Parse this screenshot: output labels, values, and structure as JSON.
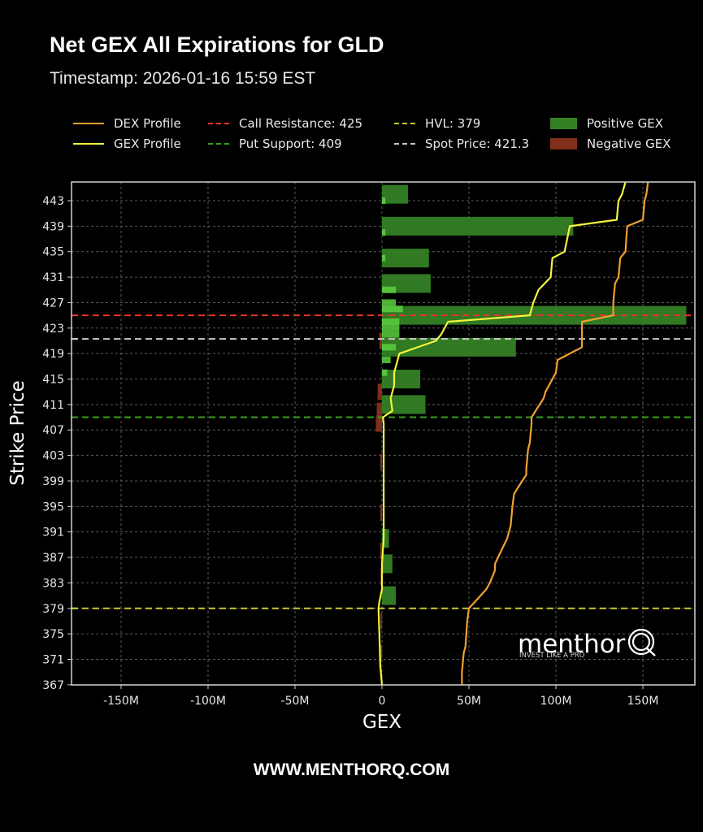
{
  "header": {
    "title": "Net GEX All Expirations for GLD",
    "timestamp": "Timestamp: 2026-01-16 15:59 EST"
  },
  "legend": [
    {
      "label": "DEX Profile",
      "type": "line",
      "color": "#f0a030"
    },
    {
      "label": "GEX Profile",
      "type": "line",
      "color": "#f4f43c"
    },
    {
      "label": "Call Resistance: 425",
      "type": "dashed",
      "color": "#e8342a"
    },
    {
      "label": "Put Support: 409",
      "type": "dashed",
      "color": "#3aa020"
    },
    {
      "label": "HVL: 379",
      "type": "dashed",
      "color": "#c8c830"
    },
    {
      "label": "Spot Price: 421.3",
      "type": "dashed",
      "color": "#c8c8c8"
    },
    {
      "label": "Positive GEX",
      "type": "box",
      "color": "#348024"
    },
    {
      "label": "Negative GEX",
      "type": "box",
      "color": "#80301a"
    }
  ],
  "watermark": {
    "brand": "menthor",
    "brand_q": "Q",
    "tagline": "INVEST LIKE A PRO"
  },
  "footer": {
    "url": "WWW.MENTHORQ.COM"
  },
  "chart_data": {
    "type": "bar",
    "orientation": "horizontal",
    "title": "Net GEX All Expirations for GLD",
    "subtitle": "Timestamp: 2026-01-16 15:59 EST",
    "xlabel": "GEX",
    "ylabel": "Strike Price",
    "xlim": [
      -180,
      180
    ],
    "ylim": [
      367,
      446
    ],
    "x_unit": "M",
    "x_ticks": [
      "-150M",
      "-100M",
      "-50M",
      "0",
      "50M",
      "100M",
      "150M"
    ],
    "x_tick_values": [
      -150,
      -100,
      -50,
      0,
      50,
      100,
      150
    ],
    "y_ticks": [
      443,
      439,
      435,
      431,
      427,
      423,
      419,
      415,
      411,
      407,
      403,
      399,
      395,
      391,
      387,
      383,
      379,
      375,
      371,
      367
    ],
    "grid": true,
    "legend_position": "top",
    "reference_lines": [
      {
        "name": "Call Resistance",
        "value": 425,
        "color": "#e8342a"
      },
      {
        "name": "Put Support",
        "value": 409,
        "color": "#3aa020"
      },
      {
        "name": "HVL",
        "value": 379,
        "color": "#c8c830"
      },
      {
        "name": "Spot Price",
        "value": 421.3,
        "color": "#c8c8c8"
      }
    ],
    "series": [
      {
        "name": "Positive GEX",
        "color": "#348024",
        "strikes": [
          444,
          439,
          434,
          430,
          425,
          420,
          415,
          411,
          390,
          386,
          381
        ],
        "values": [
          15,
          110,
          27,
          28,
          175,
          77,
          22,
          25,
          4,
          6,
          8
        ]
      },
      {
        "name": "Negative GEX",
        "color": "#80301a",
        "strikes": [
          421,
          413,
          410,
          408,
          402,
          394,
          388,
          384,
          377,
          372
        ],
        "values": [
          -1.5,
          -2.5,
          -3,
          -3.5,
          -1,
          -1,
          -1,
          -0.8,
          -0.8,
          -1
        ]
      },
      {
        "name": "GEX Profile",
        "color": "#f4f43c",
        "strikes": [
          446,
          444,
          443,
          440,
          439,
          435,
          434,
          431,
          429,
          427,
          426,
          425,
          424,
          422,
          421,
          419,
          418,
          416,
          414,
          412,
          410,
          409,
          408,
          405,
          400,
          395,
          390,
          386,
          382,
          380,
          379,
          375,
          370,
          367
        ],
        "values": [
          140,
          138,
          136,
          135,
          108,
          105,
          98,
          97,
          90,
          87,
          86,
          85,
          38,
          34,
          31,
          10,
          9,
          7,
          7,
          5,
          6,
          0.5,
          1,
          1,
          1,
          1,
          1,
          0,
          0,
          -1.5,
          -2,
          -1.5,
          -1,
          0
        ]
      },
      {
        "name": "DEX Profile",
        "color": "#f0a030",
        "strikes": [
          446,
          444,
          443,
          440,
          439,
          435,
          434,
          431,
          430,
          427,
          426,
          425,
          424,
          421,
          420,
          418,
          416,
          413,
          412,
          409,
          408,
          405,
          404,
          401,
          400,
          397,
          395,
          392,
          390,
          386,
          385,
          383,
          382,
          379,
          377,
          373,
          372,
          369,
          367
        ],
        "values": [
          153,
          152,
          151,
          150,
          141,
          140,
          137,
          136,
          134,
          133,
          133,
          133,
          115,
          115,
          115,
          101,
          100,
          94,
          93,
          86,
          86,
          85,
          84,
          83,
          83,
          76,
          75,
          74,
          72,
          65,
          65,
          62,
          60,
          50,
          49,
          48,
          47,
          46,
          46
        ]
      }
    ]
  },
  "axes": {
    "xlabel": "GEX",
    "ylabel": "Strike Price",
    "x_ticks": [
      "-150M",
      "-100M",
      "-50M",
      "0",
      "50M",
      "100M",
      "150M"
    ],
    "y_ticks": [
      "443",
      "439",
      "435",
      "431",
      "427",
      "423",
      "419",
      "415",
      "411",
      "407",
      "403",
      "399",
      "395",
      "391",
      "387",
      "383",
      "379",
      "375",
      "371",
      "367"
    ]
  }
}
